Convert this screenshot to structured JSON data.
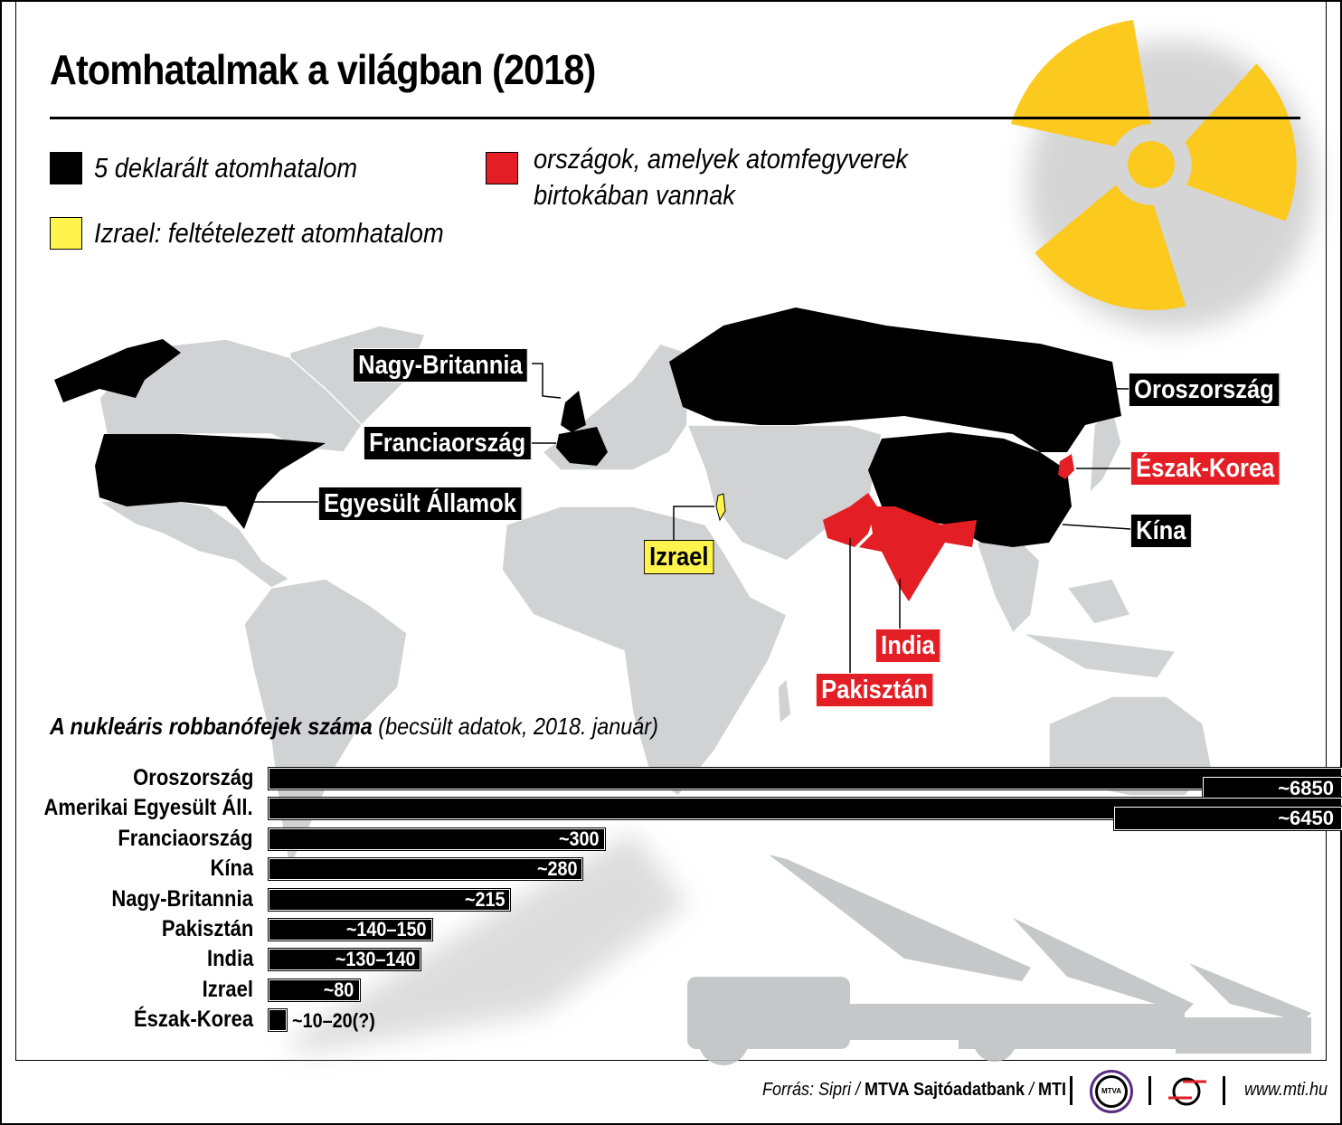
{
  "title": "Atomhatalmak a világban (2018)",
  "legend": [
    {
      "label": "5 deklarált atomhatalom",
      "color": "#000000"
    },
    {
      "label": "Izrael: feltételezett atomhatalom",
      "color": "#fff34d"
    },
    {
      "label_line1": "országok, amelyek atomfegyverek",
      "label_line2": "birtokában vannak",
      "color": "#e31e24"
    }
  ],
  "map_labels": {
    "uk": "Nagy-Britannia",
    "france": "Franciaország",
    "usa": "Egyesült Államok",
    "israel": "Izrael",
    "russia": "Oroszország",
    "north_korea": "Észak-Korea",
    "china": "Kína",
    "india": "India",
    "pakistan": "Pakisztán"
  },
  "colors": {
    "declared": "#000000",
    "assumed": "#fff34d",
    "possessing": "#e31e24",
    "land": "#d1d2d3",
    "trefoil": "#fcc91f"
  },
  "icons": [
    "radiation-trefoil-icon",
    "missile-launcher-silhouette",
    "mtva-logo",
    "mti-logo"
  ],
  "chart_data": {
    "type": "bar",
    "orientation": "horizontal",
    "title": "A nukleáris robbanófejek száma",
    "subtitle": "(becsült adatok, 2018. január)",
    "axis_break": true,
    "categories": [
      "Oroszország",
      "Amerikai Egyesült Áll.",
      "Franciaország",
      "Kína",
      "Nagy-Britannia",
      "Pakisztán",
      "India",
      "Izrael",
      "Észak-Korea"
    ],
    "values": [
      6850,
      6450,
      300,
      280,
      215,
      145,
      135,
      80,
      15
    ],
    "data_labels": [
      "~6850",
      "~6450",
      "~300",
      "~280",
      "~215",
      "~140–150",
      "~130–140",
      "~80",
      "~10–20(?)"
    ]
  },
  "footer": {
    "source_prefix": "Forrás: Sipri / ",
    "source_bold": "MTVA Sajtóadatbank",
    "sep": " / ",
    "agency": "MTI",
    "mtva_logo_text": "MTVA",
    "website": "www.mti.hu"
  }
}
